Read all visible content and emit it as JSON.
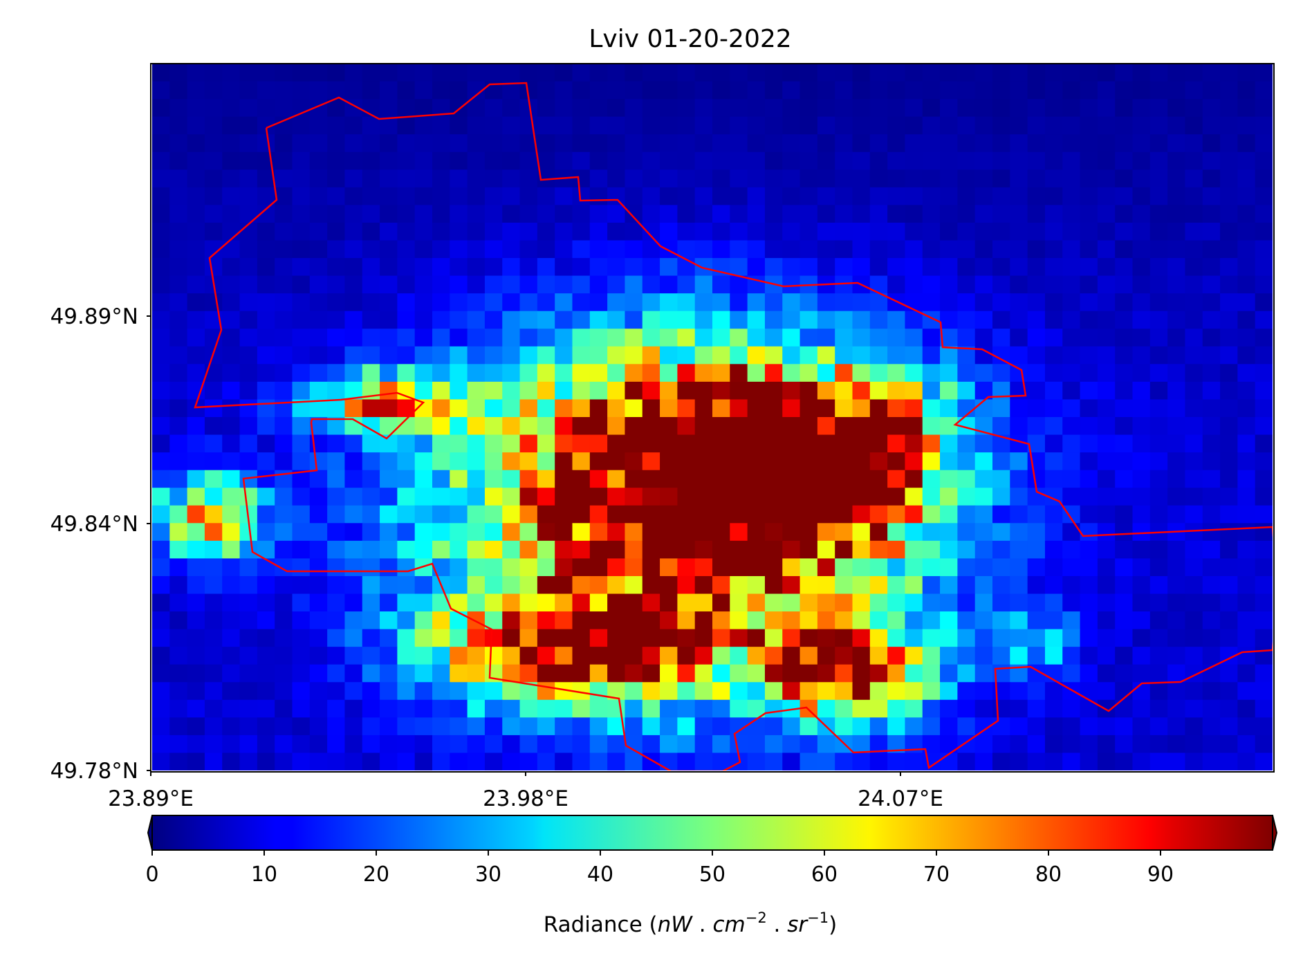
{
  "map": {
    "title": "Lviv 01-20-2022",
    "lat_ticks": [
      "49.89°N",
      "49.84°N",
      "49.78°N"
    ],
    "lon_ticks": [
      "23.89°E",
      "23.98°E",
      "24.07°E"
    ],
    "boundary_color": "#ff0000",
    "colormap": "jet",
    "grid_cols": 64,
    "grid_rows": 40
  },
  "colorbar": {
    "ticks": [
      "0",
      "10",
      "20",
      "30",
      "40",
      "50",
      "60",
      "70",
      "80",
      "90"
    ],
    "label_prefix": "Radiance (",
    "label_nW": "nW",
    "label_dot1": " . ",
    "label_cm": "cm",
    "label_cm_exp": "−2",
    "label_dot2": " . ",
    "label_sr": "sr",
    "label_sr_exp": "−1",
    "label_suffix": ")",
    "range": [
      0,
      100
    ],
    "extend": "both"
  }
}
